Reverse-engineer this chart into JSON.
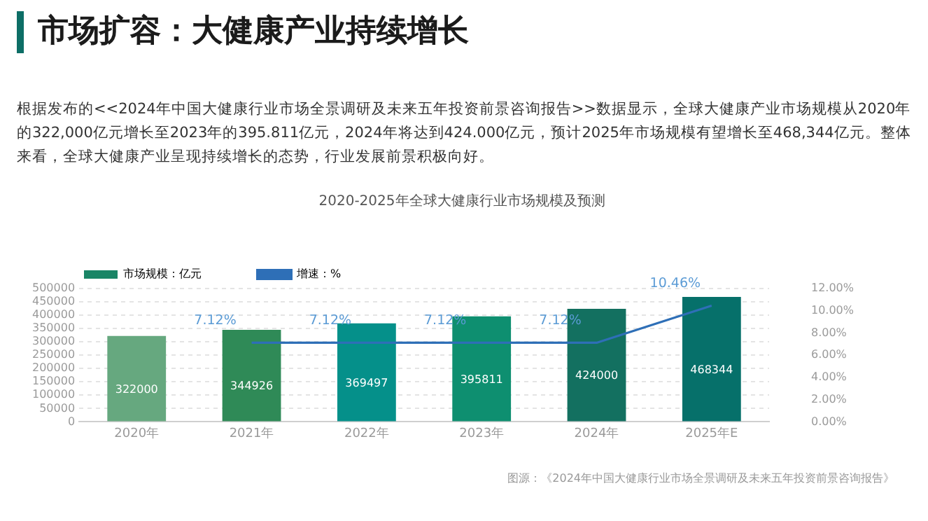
{
  "chart_data": {
    "type": "bar",
    "title": "2020-2025年全球大健康行业市场规模及预测",
    "subtitle": "根据发布的<<2024年中国大健康行业市场全景调研及未来五年投资前景咨询报告>>数据显示，全球大健康产业市场规模从2020年的322,000亿元增长至2023年的395.811亿元，2024年将达到424.000亿元，预计2025年市场规模有望增长至468,344亿元。整体来看，全球大健康产业呈现持续增长的态势，行业发展前景积极向好。",
    "annotations": [
      "市场扩容：大健康产业持续增长",
      "图源：《2024年中国大健康行业市场全景调研及未来五年投资前景咨询报告》"
    ],
    "categories": [
      "2020年",
      "2021年",
      "2022年",
      "2023年",
      "2024年",
      "2025年E"
    ],
    "series": [
      {
        "name": "市场规模：亿元",
        "colors": [
          "#66a87f",
          "#2f8a57",
          "#05908a",
          "#0e8f70",
          "#137060",
          "#06706a"
        ],
        "color": "#1a8566",
        "values": [
          322000,
          344926,
          369497,
          395811,
          424000,
          468344
        ]
      },
      {
        "name": "增速：%",
        "type": "line",
        "axis": "y2",
        "color": "#2e6fb7",
        "values": [
          null,
          7.12,
          7.12,
          7.12,
          7.12,
          10.46
        ],
        "value_labels": [
          null,
          "7.12%",
          "7.12%",
          "7.12%",
          "7.12%",
          "10.46%"
        ]
      }
    ],
    "ylim": [
      0,
      500000
    ],
    "yticks": [
      0,
      50000,
      100000,
      150000,
      200000,
      250000,
      300000,
      350000,
      400000,
      450000,
      500000
    ],
    "y2lim": [
      0,
      12
    ],
    "y2ticks": [
      {
        "value": 0,
        "label": "0.00%"
      },
      {
        "value": 2,
        "label": "2.00%"
      },
      {
        "value": 4,
        "label": "4.00%"
      },
      {
        "value": 6,
        "label": "6.00%"
      },
      {
        "value": 8,
        "label": "8.00%"
      },
      {
        "value": 10,
        "label": "10.00%"
      },
      {
        "value": 12,
        "label": "12.00%"
      }
    ],
    "grid": "y",
    "legend": "top left",
    "marker": "none",
    "line_style": "solid",
    "data_labels": true
  }
}
